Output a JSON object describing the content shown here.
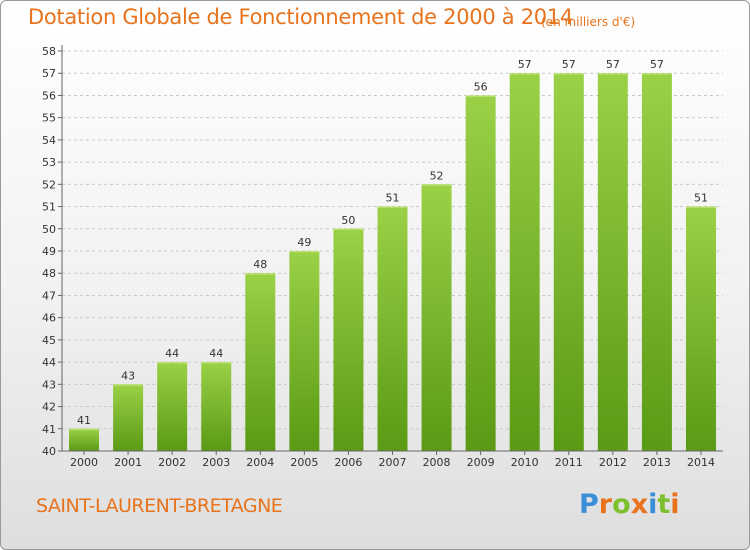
{
  "header": {
    "title": "Dotation Globale de Fonctionnement de 2000 à 2014",
    "subtitle": "(en milliers d'€)"
  },
  "footer": {
    "commune": "SAINT-LAURENT-BRETAGNE",
    "logo_text": "Proxiti",
    "logo_colors": [
      "#3a8fd8",
      "#e8731c",
      "#7cc02e",
      "#e8731c",
      "#3a8fd8",
      "#7cc02e",
      "#e8731c"
    ]
  },
  "colors": {
    "accent": "#e8731c",
    "bar_light": "#9ad147",
    "bar_dark": "#5a9a14",
    "grid": "#c9c9c9"
  },
  "chart_data": {
    "type": "bar",
    "title": "Dotation Globale de Fonctionnement de 2000 à 2014",
    "subtitle": "(en milliers d'€)",
    "categories": [
      "2000",
      "2001",
      "2002",
      "2003",
      "2004",
      "2005",
      "2006",
      "2007",
      "2008",
      "2009",
      "2010",
      "2011",
      "2012",
      "2013",
      "2014"
    ],
    "values": [
      41,
      43,
      44,
      44,
      48,
      49,
      50,
      51,
      52,
      56,
      57,
      57,
      57,
      57,
      51
    ],
    "ylim": [
      40,
      58
    ],
    "ytick_step": 1,
    "grid": true,
    "show_data_labels": true,
    "xlabel": "",
    "ylabel": ""
  }
}
